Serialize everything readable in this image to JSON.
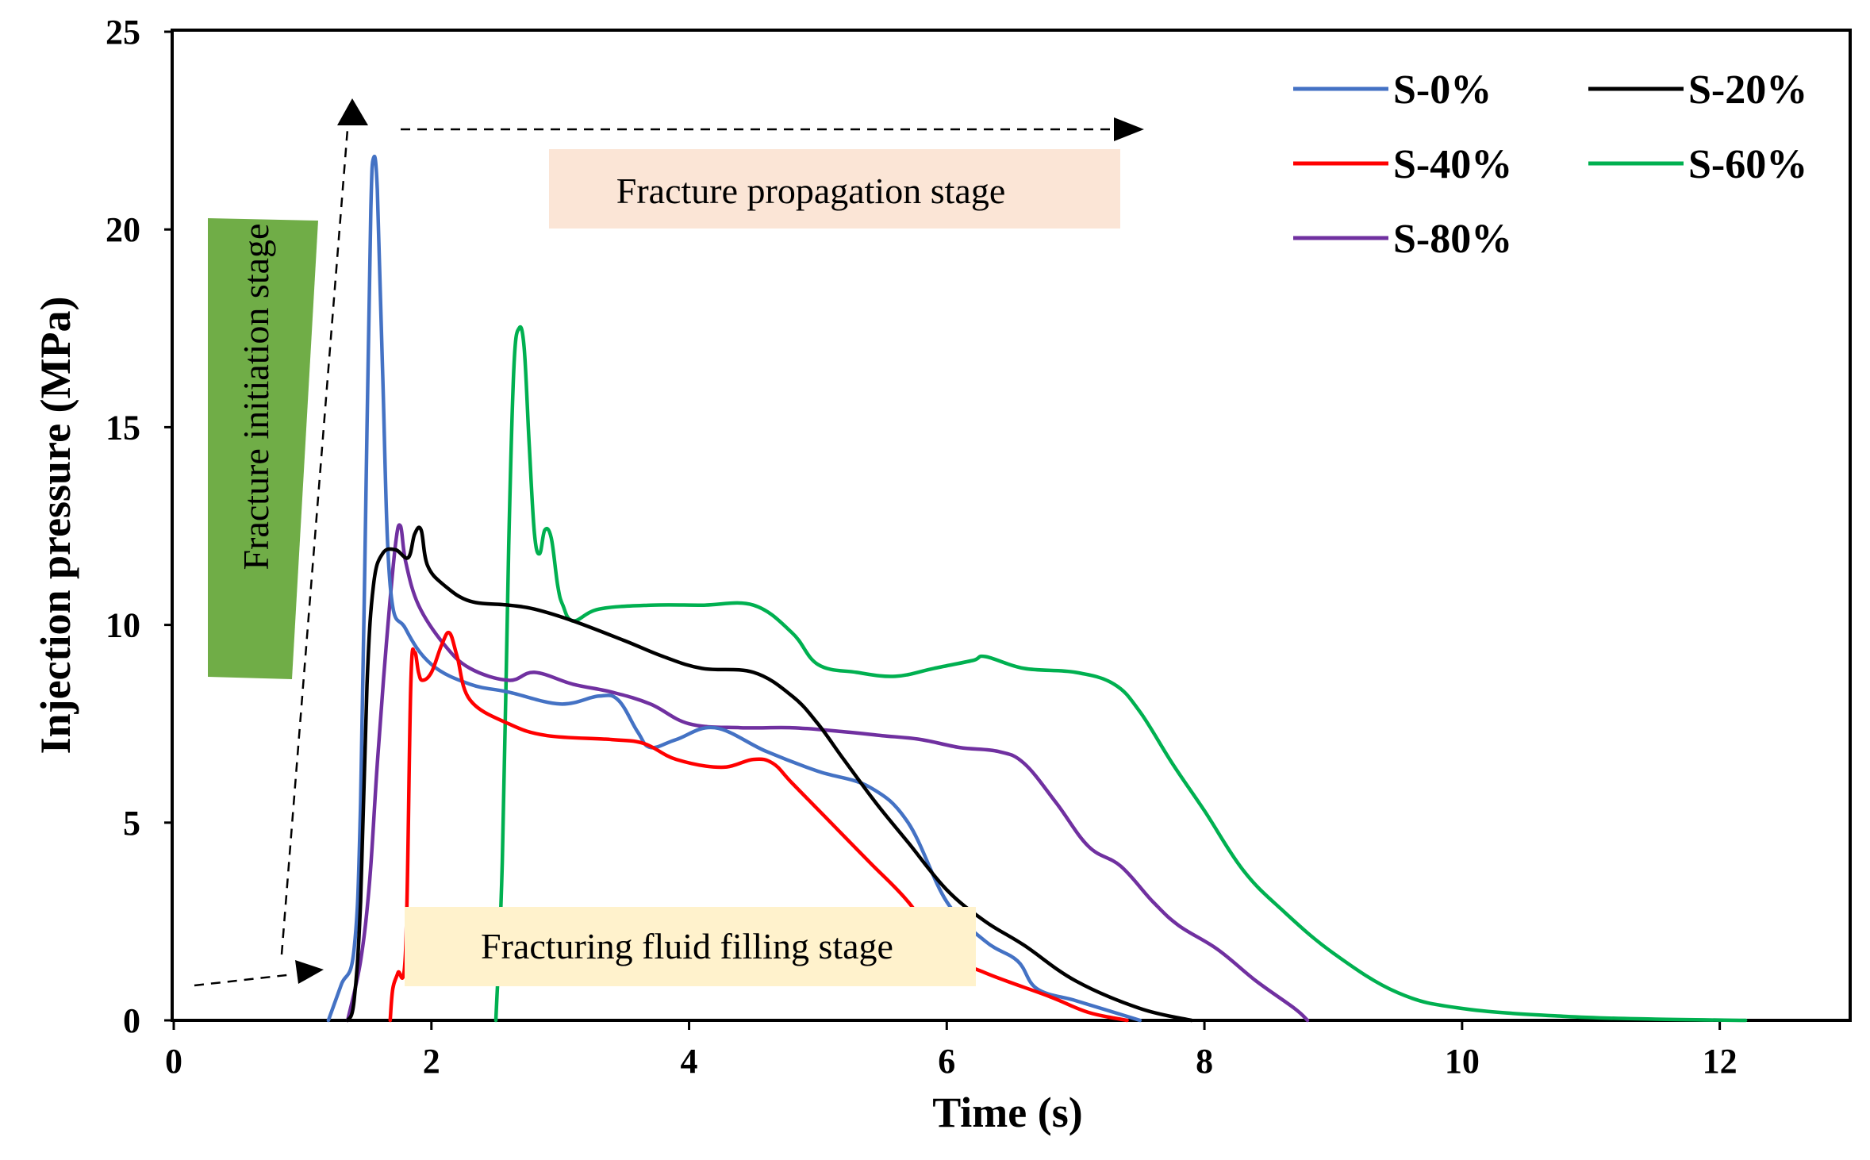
{
  "chart_data": {
    "type": "line",
    "title": "",
    "xlabel": "Time (s)",
    "ylabel": "Injection pressure (MPa)",
    "xlim": [
      0,
      13
    ],
    "ylim": [
      0,
      25
    ],
    "xticks": [
      0,
      2,
      4,
      6,
      8,
      10,
      12
    ],
    "yticks": [
      0,
      5,
      10,
      15,
      20,
      25
    ],
    "legend_position": "top-right",
    "series": [
      {
        "name": "S-0%",
        "color": "#4472C4",
        "x": [
          1.2,
          1.3,
          1.4,
          1.45,
          1.5,
          1.53,
          1.55,
          1.58,
          1.62,
          1.68,
          1.8,
          2.0,
          2.3,
          2.6,
          3.0,
          3.3,
          3.45,
          3.6,
          3.7,
          3.9,
          4.2,
          4.6,
          5.0,
          5.4,
          5.7,
          6.0,
          6.3,
          6.55,
          6.7,
          7.0,
          7.3,
          7.5
        ],
        "y": [
          0,
          0.9,
          1.8,
          5.5,
          15.0,
          20.5,
          21.8,
          21.0,
          16.5,
          11.0,
          9.9,
          9.0,
          8.5,
          8.3,
          8.0,
          8.2,
          8.1,
          7.3,
          6.9,
          7.1,
          7.4,
          6.8,
          6.3,
          5.9,
          5.0,
          3.0,
          2.0,
          1.5,
          0.8,
          0.5,
          0.2,
          0
        ]
      },
      {
        "name": "S-20%",
        "color": "#000000",
        "x": [
          1.35,
          1.4,
          1.45,
          1.5,
          1.55,
          1.62,
          1.72,
          1.82,
          1.87,
          1.92,
          1.97,
          2.1,
          2.3,
          2.6,
          2.8,
          3.1,
          3.5,
          3.8,
          4.1,
          4.5,
          4.8,
          5.0,
          5.2,
          5.45,
          5.7,
          6.0,
          6.3,
          6.6,
          7.0,
          7.5,
          7.9
        ],
        "y": [
          0,
          0.5,
          3.0,
          8.5,
          11.0,
          11.8,
          11.9,
          11.7,
          12.3,
          12.4,
          11.5,
          11.0,
          10.6,
          10.5,
          10.4,
          10.1,
          9.6,
          9.2,
          8.9,
          8.8,
          8.2,
          7.5,
          6.6,
          5.5,
          4.5,
          3.3,
          2.5,
          1.9,
          1.0,
          0.3,
          0
        ]
      },
      {
        "name": "S-40%",
        "color": "#FF0000",
        "x": [
          1.68,
          1.7,
          1.74,
          1.8,
          1.84,
          1.87,
          1.9,
          1.93,
          2.0,
          2.08,
          2.14,
          2.2,
          2.3,
          2.6,
          2.9,
          3.4,
          3.65,
          3.9,
          4.25,
          4.5,
          4.65,
          4.8,
          5.1,
          5.4,
          5.7,
          6.0,
          6.3,
          6.8,
          7.1,
          7.4
        ],
        "y": [
          0,
          0.8,
          1.2,
          1.8,
          8.5,
          9.3,
          8.8,
          8.6,
          8.8,
          9.5,
          9.8,
          9.2,
          8.1,
          7.5,
          7.2,
          7.1,
          7.0,
          6.6,
          6.4,
          6.6,
          6.5,
          6.0,
          5.0,
          4.0,
          3.0,
          1.7,
          1.2,
          0.6,
          0.2,
          0
        ]
      },
      {
        "name": "S-60%",
        "color": "#00B050",
        "x": [
          2.5,
          2.55,
          2.6,
          2.64,
          2.68,
          2.72,
          2.76,
          2.8,
          2.84,
          2.88,
          2.93,
          2.98,
          3.02,
          3.1,
          3.3,
          3.7,
          4.1,
          4.5,
          4.8,
          5.0,
          5.3,
          5.6,
          5.9,
          6.2,
          6.3,
          6.6,
          7.0,
          7.3,
          7.5,
          7.75,
          8.0,
          8.3,
          8.6,
          9.0,
          9.5,
          10.0,
          10.8,
          11.5,
          12.2
        ],
        "y": [
          0,
          4.0,
          12.0,
          16.5,
          17.5,
          17.0,
          14.5,
          12.3,
          11.8,
          12.4,
          12.2,
          11.0,
          10.5,
          10.1,
          10.4,
          10.5,
          10.5,
          10.5,
          9.8,
          9.0,
          8.8,
          8.7,
          8.9,
          9.1,
          9.2,
          8.9,
          8.8,
          8.5,
          7.8,
          6.5,
          5.3,
          3.8,
          2.8,
          1.7,
          0.7,
          0.3,
          0.1,
          0.03,
          0
        ]
      },
      {
        "name": "S-80%",
        "color": "#7030A0",
        "x": [
          1.35,
          1.45,
          1.52,
          1.58,
          1.65,
          1.72,
          1.76,
          1.8,
          1.9,
          2.1,
          2.3,
          2.6,
          2.8,
          3.1,
          3.4,
          3.7,
          4.0,
          4.4,
          4.8,
          5.2,
          5.5,
          5.8,
          6.1,
          6.4,
          6.6,
          6.85,
          7.1,
          7.35,
          7.6,
          7.8,
          8.1,
          8.4,
          8.7,
          8.8
        ],
        "y": [
          0,
          1.5,
          3.5,
          6.5,
          9.5,
          12.0,
          12.5,
          11.6,
          10.5,
          9.5,
          8.9,
          8.6,
          8.8,
          8.5,
          8.3,
          8.0,
          7.5,
          7.4,
          7.4,
          7.3,
          7.2,
          7.1,
          6.9,
          6.8,
          6.5,
          5.5,
          4.4,
          3.9,
          3.0,
          2.4,
          1.8,
          1.0,
          0.3,
          0
        ]
      }
    ],
    "annotations": [
      "Fracture propagation stage",
      "Fracture initiation  stage",
      "Fracturing  fluid  filling  stage"
    ]
  }
}
